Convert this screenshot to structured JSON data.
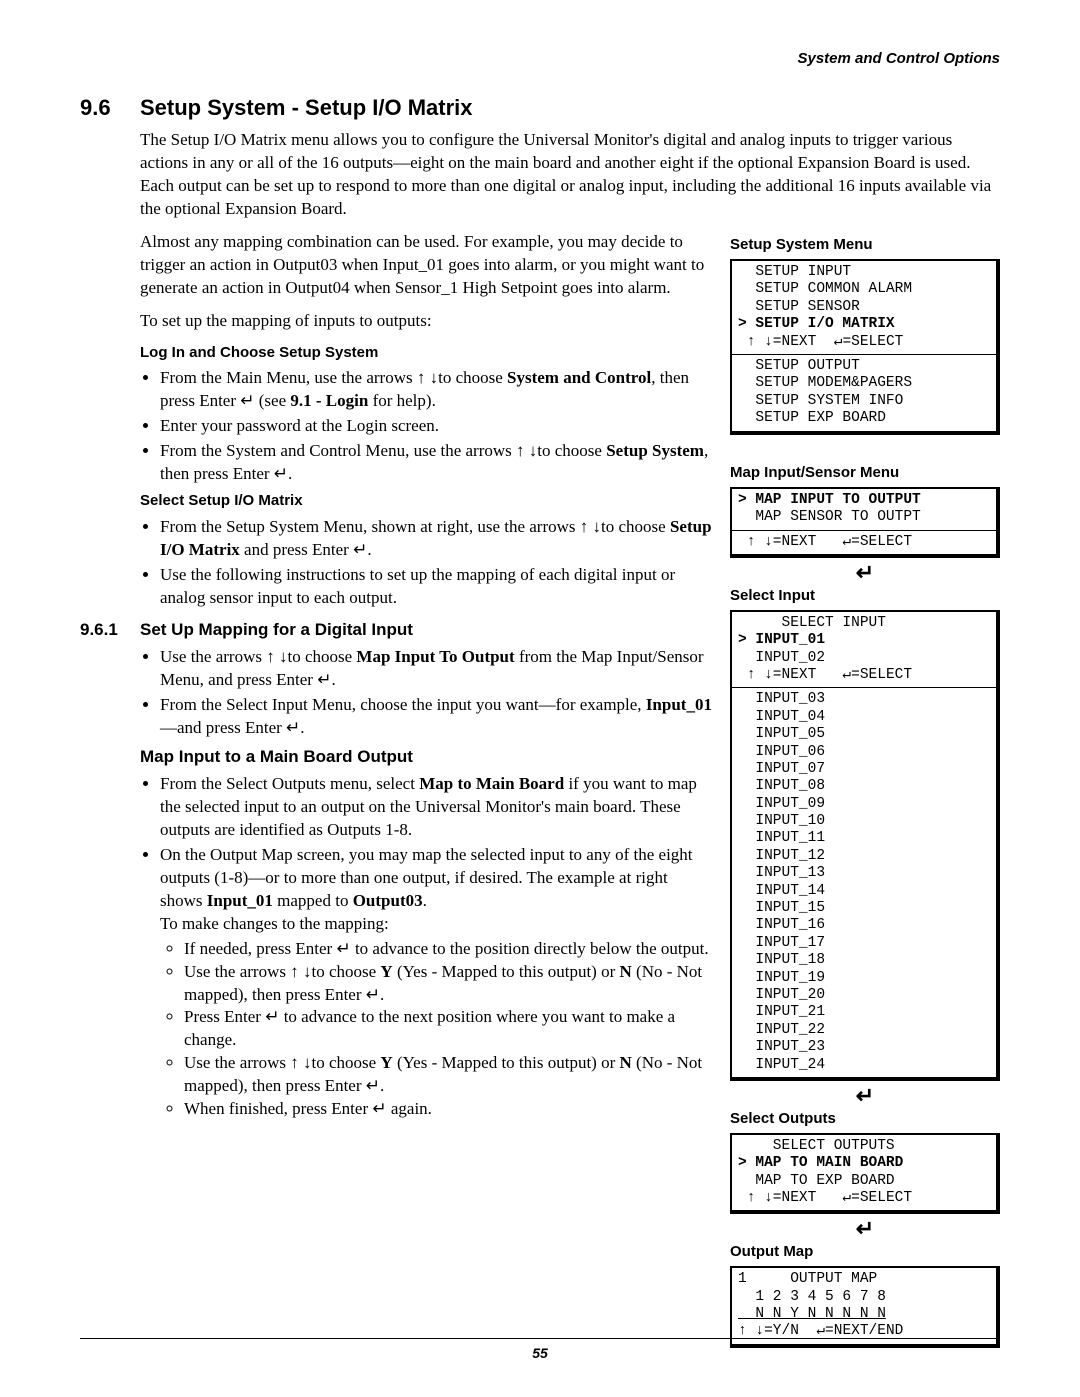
{
  "running_header": "System and Control Options",
  "h1_num": "9.6",
  "h1_text": "Setup System - Setup I/O Matrix",
  "intro1": "The Setup I/O Matrix menu allows you to configure the Universal Monitor's digital and analog inputs to trigger various actions in any or all of the 16 outputs—eight on the main board and another eight if the optional Expansion Board is used. Each output can be set up to respond to more than one digital or analog input, including the additional 16 inputs available via the optional Expansion Board.",
  "intro2": "Almost any mapping combination can be used. For example, you may decide to trigger an action in Output03 when Input_01 goes into alarm, or you might want to generate an action in Output04 when Sensor_1 High Setpoint goes into alarm.",
  "intro3": "To set up the mapping of inputs to outputs:",
  "sub_login": "Log In and Choose Setup System",
  "login_b1_a": "From the Main Menu, use the arrows ↑ ↓to choose ",
  "login_b1_b": "System and Control",
  "login_b1_c": ", then press Enter ↵ (see ",
  "login_b1_d": "9.1 - Login",
  "login_b1_e": " for help).",
  "login_b2": "Enter your password at the Login screen.",
  "login_b3_a": "From the System and Control Menu, use the arrows ↑ ↓to choose ",
  "login_b3_b": "Setup System",
  "login_b3_c": ", then press Enter ↵.",
  "sub_select": "Select Setup I/O Matrix",
  "sel_b1_a": "From the Setup System Menu, shown at right, use the arrows ↑ ↓to choose ",
  "sel_b1_b": "Setup I/O Matrix",
  "sel_b1_c": " and press Enter ↵.",
  "sel_b2": "Use the following instructions to set up the mapping of each digital input or analog sensor input to each output.",
  "h2_num": "9.6.1",
  "h2_text": "Set Up Mapping for a Digital Input",
  "dig_b1_a": "Use the arrows ↑ ↓to choose ",
  "dig_b1_b": "Map Input To Output",
  "dig_b1_c": " from the Map Input/Sensor Menu, and press Enter ↵.",
  "dig_b2_a": "From the Select Input Menu, choose the input you want—for example, ",
  "dig_b2_b": "Input_01",
  "dig_b2_c": "—and press Enter ↵.",
  "sub_map": "Map Input to a Main Board Output",
  "map_b1_a": "From the Select Outputs menu, select ",
  "map_b1_b": "Map to Main Board",
  "map_b1_c": " if you want to map the selected input to an output on the Universal Monitor's main board. These outputs are identified as Outputs 1-8.",
  "map_b2_a": "On the Output Map screen, you may map the selected input to any of the eight outputs (1-8)—or to more than one output, if desired. The example at right shows ",
  "map_b2_b": "Input_01",
  "map_b2_c": " mapped to ",
  "map_b2_d": "Output03",
  "map_b2_e": ".",
  "map_b2_f": "To make changes to the mapping:",
  "map_sub1": "If needed, press Enter ↵ to advance to the position directly below the output.",
  "map_sub2_a": "Use the arrows ↑ ↓to choose ",
  "map_sub2_b": "Y",
  "map_sub2_c": " (Yes - Mapped to this output) or ",
  "map_sub2_d": "N",
  "map_sub2_e": " (No - Not mapped), then press Enter ↵.",
  "map_sub3": "Press Enter ↵ to advance to the next position where you want to make a change.",
  "map_sub4_a": "Use the arrows ↑ ↓to choose ",
  "map_sub4_b": "Y",
  "map_sub4_c": " (Yes - Mapped to this output) or ",
  "map_sub4_d": "N",
  "map_sub4_e": " (No - Not mapped), then press Enter ↵.",
  "map_sub5": "When finished, press Enter ↵ again.",
  "side_setup_title": "Setup System Menu",
  "side_setup_top": "  SETUP INPUT\n  SETUP COMMON ALARM\n  SETUP SENSOR\n> SETUP I/O MATRIX\n ↑ ↓=NEXT  ↵=SELECT",
  "side_setup_bot": "  SETUP OUTPUT\n  SETUP MODEM&PAGERS\n  SETUP SYSTEM INFO\n  SETUP EXP BOARD",
  "side_setup_top_bold_line": 3,
  "side_mis_title": "Map Input/Sensor Menu",
  "side_mis_top": "> MAP INPUT TO OUTPUT\n  MAP SENSOR TO OUTPT",
  "side_mis_bot": " ↑ ↓=NEXT   ↵=SELECT",
  "side_mis_bold_line": 0,
  "side_si_title": "Select Input",
  "side_si_top": "     SELECT INPUT\n> INPUT_01\n  INPUT_02\n ↑ ↓=NEXT   ↵=SELECT",
  "side_si_bold_line": 1,
  "side_si_bot": "  INPUT_03\n  INPUT_04\n  INPUT_05\n  INPUT_06\n  INPUT_07\n  INPUT_08\n  INPUT_09\n  INPUT_10\n  INPUT_11\n  INPUT_12\n  INPUT_13\n  INPUT_14\n  INPUT_15\n  INPUT_16\n  INPUT_17\n  INPUT_18\n  INPUT_19\n  INPUT_20\n  INPUT_21\n  INPUT_22\n  INPUT_23\n  INPUT_24",
  "side_so_title": "Select Outputs",
  "side_so": "    SELECT OUTPUTS\n> MAP TO MAIN BOARD\n  MAP TO EXP BOARD\n ↑ ↓=NEXT   ↵=SELECT",
  "side_so_bold_line": 1,
  "side_om_title": "Output Map",
  "side_om": "1     OUTPUT MAP\n  1 2 3 4 5 6 7 8\n  N N Y N N N N N\n↑ ↓=Y/N  ↵=NEXT/END",
  "page_number": "55",
  "enter_glyph": "↵"
}
